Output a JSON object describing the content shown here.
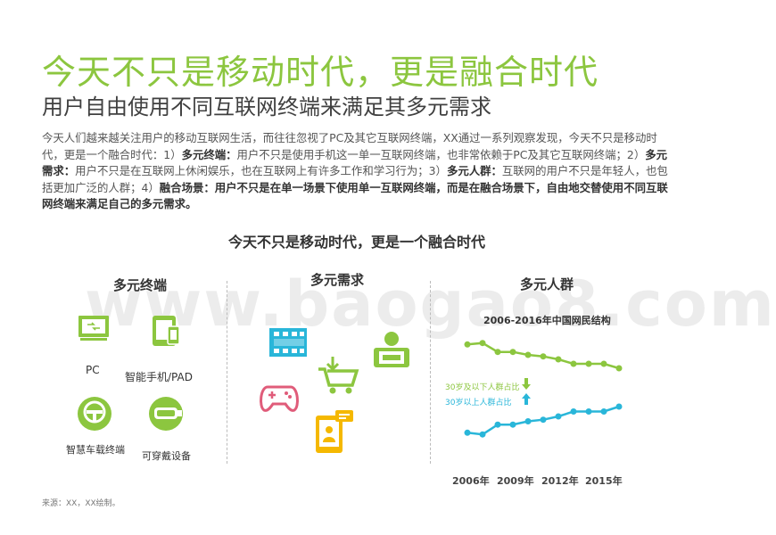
{
  "header": {
    "title": "今天不只是移动时代，更是融合时代",
    "subtitle": "用户自由使用不同互联网终端来满足其多元需求"
  },
  "intro": {
    "p1": "今天人们越来越关注用户的移动互联网生活，而往往忽视了PC及其它互联网终端，XX通过一系列观察发现，今天不只是移动时代，更是一个融合时代：1）",
    "k1": "多元终端：",
    "p2": "用户不只是使用手机这一单一互联网终端，也非常依赖于PC及其它互联网终端；2）",
    "k2": "多元需求：",
    "p3": "用户不只是在互联网上休闲娱乐，也在互联网上有许多工作和学习行为；3）",
    "k3": "多元人群：",
    "p4": "互联网的用户不只是年轻人，也包括更加广泛的人群；4）",
    "k4": "融合场景：用户不只是在单一场景下使用单一互联网终端，而是在融合场景下，自由地交替使用不同互联网终端来满足自己的多元需求。"
  },
  "diagram": {
    "title": "今天不只是移动时代，更是一个融合时代",
    "terminals": {
      "heading": "多元终端",
      "items": [
        "PC",
        "智能手机/PAD",
        "智慧车载终端",
        "可穿戴设备"
      ]
    },
    "needs": {
      "heading": "多元需求"
    },
    "groups": {
      "heading": "多元人群"
    }
  },
  "watermark": "www.baogao8.com",
  "chart_data": {
    "type": "line",
    "title": "2006-2016年中国网民结构",
    "x_ticks": [
      "2006年",
      "2009年",
      "2012年",
      "2015年"
    ],
    "x": [
      2006,
      2007,
      2008,
      2009,
      2010,
      2011,
      2012,
      2013,
      2014,
      2015,
      2016
    ],
    "series": [
      {
        "name": "30岁及以下人群占比",
        "color": "#8cc63f",
        "values": [
          82,
          83,
          77,
          77,
          75,
          74,
          72,
          69,
          69,
          69,
          66
        ]
      },
      {
        "name": "30岁以上人群占比",
        "color": "#29b6d9",
        "values": [
          18,
          17,
          23,
          23,
          25,
          26,
          28,
          31,
          31,
          31,
          34
        ]
      }
    ],
    "grid": false,
    "legend": "center-left"
  },
  "source": "来源：XX，XX绘制。"
}
